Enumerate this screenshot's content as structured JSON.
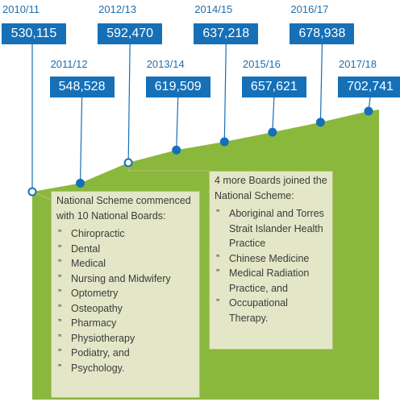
{
  "chart_data": {
    "type": "area",
    "x": [
      "2010/11",
      "2011/12",
      "2012/13",
      "2013/14",
      "2014/15",
      "2015/16",
      "2016/17",
      "2017/18"
    ],
    "values": [
      530115,
      548528,
      592470,
      619509,
      637218,
      657621,
      678938,
      702741
    ],
    "value_labels": [
      "530,115",
      "548,528",
      "592,470",
      "619,509",
      "637,218",
      "657,621",
      "678,938",
      "702,741"
    ],
    "title": "",
    "xlabel": "",
    "ylabel": "",
    "grid": false,
    "legend": "none",
    "colors": {
      "area": "#8ab83c",
      "marker": "#1570b8",
      "value_box": "#1570b8",
      "year_text": "#1f6fae",
      "callout_bg": "#e3e7c7"
    }
  },
  "annotations": {
    "scheme_start": {
      "intro": "National Scheme commenced with 10 National Boards:",
      "items": [
        "Chiropractic",
        "Dental",
        "Medical",
        "Nursing and Midwifery",
        "Optometry",
        "Osteopathy",
        "Pharmacy",
        "Physiotherapy",
        "Podiatry, and",
        "Psychology."
      ]
    },
    "boards_joined": {
      "intro": "4 more Boards joined the National Scheme:",
      "items": [
        "Aboriginal and Torres Strait Islander Health Practice",
        "Chinese Medicine",
        "Medical Radiation Practice, and",
        "Occupational Therapy."
      ]
    },
    "bullet": "”"
  }
}
